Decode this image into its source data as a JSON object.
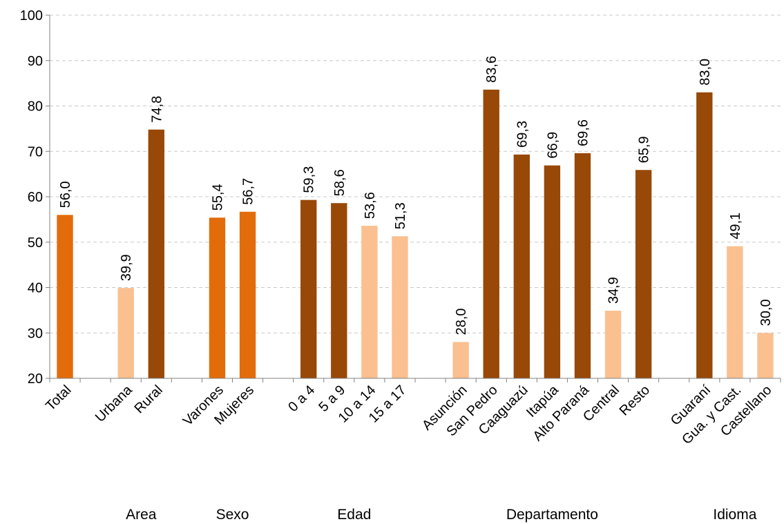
{
  "chart_data": {
    "type": "bar",
    "title": "",
    "xlabel": "",
    "ylabel": "",
    "ylim": [
      20,
      100
    ],
    "yticks": [
      20,
      30,
      40,
      50,
      60,
      70,
      80,
      90,
      100
    ],
    "grid": true,
    "colors": {
      "orange": "#E36C0A",
      "light": "#FAC090",
      "brown": "#984807"
    },
    "slots": [
      {
        "category": "Total",
        "value": 56.0,
        "label": "56,0",
        "color": "orange"
      },
      {
        "category": "",
        "value": null
      },
      {
        "category": "Urbana",
        "value": 39.9,
        "label": "39,9",
        "color": "light"
      },
      {
        "category": "Rural",
        "value": 74.8,
        "label": "74,8",
        "color": "brown"
      },
      {
        "category": "",
        "value": null
      },
      {
        "category": "Varones",
        "value": 55.4,
        "label": "55,4",
        "color": "orange"
      },
      {
        "category": "Mujeres",
        "value": 56.7,
        "label": "56,7",
        "color": "orange"
      },
      {
        "category": "",
        "value": null
      },
      {
        "category": "0 a 4",
        "value": 59.3,
        "label": "59,3",
        "color": "brown"
      },
      {
        "category": "5 a 9",
        "value": 58.6,
        "label": "58,6",
        "color": "brown"
      },
      {
        "category": "10 a 14",
        "value": 53.6,
        "label": "53,6",
        "color": "light"
      },
      {
        "category": "15 a 17",
        "value": 51.3,
        "label": "51,3",
        "color": "light"
      },
      {
        "category": "",
        "value": null
      },
      {
        "category": "Asunción",
        "value": 28.0,
        "label": "28,0",
        "color": "light"
      },
      {
        "category": "San Pedro",
        "value": 83.6,
        "label": "83,6",
        "color": "brown"
      },
      {
        "category": "Caaguazú",
        "value": 69.3,
        "label": "69,3",
        "color": "brown"
      },
      {
        "category": "Itapúa",
        "value": 66.9,
        "label": "66,9",
        "color": "brown"
      },
      {
        "category": "Alto Paraná",
        "value": 69.6,
        "label": "69,6",
        "color": "brown"
      },
      {
        "category": "Central",
        "value": 34.9,
        "label": "34,9",
        "color": "light"
      },
      {
        "category": "Resto",
        "value": 65.9,
        "label": "65,9",
        "color": "brown"
      },
      {
        "category": "",
        "value": null
      },
      {
        "category": "Guaraní",
        "value": 83.0,
        "label": "83,0",
        "color": "brown"
      },
      {
        "category": "Gua. y Cast.",
        "value": 49.1,
        "label": "49,1",
        "color": "light"
      },
      {
        "category": "Castellano",
        "value": 30.0,
        "label": "30,0",
        "color": "light"
      }
    ],
    "groups": [
      {
        "label": "Area",
        "from": 2,
        "to": 3
      },
      {
        "label": "Sexo",
        "from": 5,
        "to": 6
      },
      {
        "label": "Edad",
        "from": 8,
        "to": 11
      },
      {
        "label": "Departamento",
        "from": 13,
        "to": 19
      },
      {
        "label": "Idioma",
        "from": 21,
        "to": 23
      }
    ]
  }
}
